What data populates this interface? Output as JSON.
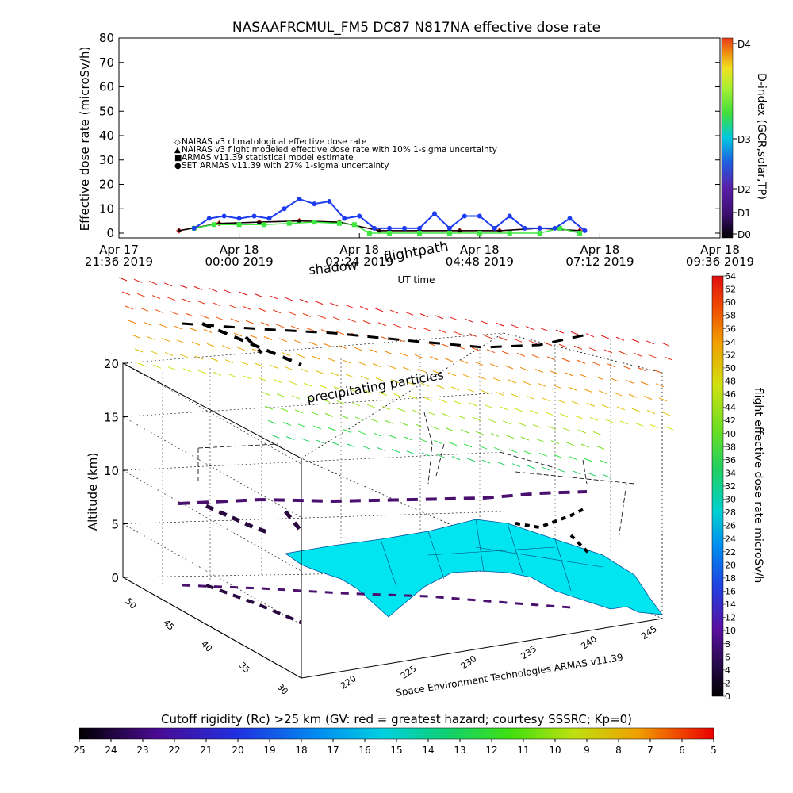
{
  "title": "NASAAFRCMUL_FM5 DC87 N817NA effective dose rate",
  "top_chart": {
    "ylabel": "Effective dose rate (microSv/h)",
    "xlabel": "UT time",
    "y_ticks": [
      "0",
      "10",
      "20",
      "30",
      "40",
      "50",
      "60",
      "70",
      "80"
    ],
    "x_ticks": [
      {
        "l1": "Apr 17",
        "l2": "21:36 2019"
      },
      {
        "l1": "Apr 18",
        "l2": "00:00 2019"
      },
      {
        "l1": "Apr 18",
        "l2": "02:24 2019"
      },
      {
        "l1": "Apr 18",
        "l2": "04:48 2019"
      },
      {
        "l1": "Apr 18",
        "l2": "07:12 2019"
      },
      {
        "l1": "Apr 18",
        "l2": "09:36 2019"
      }
    ],
    "legend": [
      {
        "marker": "◇",
        "color": "#e8261e",
        "text": "NAIRAS v3 climatological effective dose rate"
      },
      {
        "marker": "▲",
        "color": "#000000",
        "text": "NAIRAS v3 flight modeled effective dose rate with 10% 1-sigma uncertainty"
      },
      {
        "marker": "■",
        "color": "#3ee640",
        "text": "ARMAS v11.39 statistical model estimate"
      },
      {
        "marker": "●",
        "color": "#1d3cf0",
        "text": "SET ARMAS v11.39 with 27% 1-sigma uncertainty"
      }
    ],
    "dindex_label": "D-index (GCR,solar,TP)",
    "dindex_ticks": [
      "D4",
      "D3",
      "D2",
      "D1",
      "D0"
    ]
  },
  "chart_data": {
    "type": "scatter",
    "title": "NASAAFRCMUL_FM5 DC87 N817NA effective dose rate",
    "xlabel": "UT time",
    "ylabel": "Effective dose rate (microSv/h)",
    "ylim": [
      0,
      80
    ],
    "x_range_hours": [
      -2.4,
      9.6
    ],
    "series": [
      {
        "name": "NAIRAS v3 climatological effective dose rate",
        "x": [
          -1.2,
          -0.4,
          0.4,
          1.2,
          2.0,
          2.8,
          3.6,
          4.4,
          5.2,
          6.0,
          6.8
        ],
        "y": [
          1,
          4,
          4.5,
          5,
          4.5,
          1,
          1,
          1,
          1,
          2,
          1
        ]
      },
      {
        "name": "NAIRAS v3 flight modeled effective dose rate with 10% 1-sigma uncertainty",
        "x": [
          -1.2,
          -0.4,
          0.4,
          1.2,
          2.0,
          2.8,
          3.6,
          4.4,
          5.2,
          6.0,
          6.8
        ],
        "y": [
          1,
          4,
          4.5,
          5,
          4.5,
          1,
          1,
          1,
          1,
          2,
          1
        ]
      },
      {
        "name": "ARMAS v11.39 statistical model estimate",
        "x": [
          -0.9,
          -0.5,
          0,
          0.5,
          1.0,
          1.5,
          2.0,
          2.3,
          2.6,
          3.0,
          3.6,
          4.2,
          4.8,
          5.4,
          6.0,
          6.4,
          6.8
        ],
        "y": [
          2,
          3.5,
          3.5,
          3.5,
          4,
          4.5,
          4,
          3.5,
          0,
          0,
          0,
          0,
          0,
          0,
          0,
          2,
          0
        ]
      },
      {
        "name": "SET ARMAS v11.39 with 27% 1-sigma uncertainty",
        "x": [
          -0.9,
          -0.6,
          -0.3,
          0.0,
          0.3,
          0.6,
          0.9,
          1.2,
          1.5,
          1.8,
          2.1,
          2.4,
          2.7,
          3.0,
          3.3,
          3.6,
          3.9,
          4.2,
          4.5,
          4.8,
          5.1,
          5.4,
          5.7,
          6.0,
          6.3,
          6.6,
          6.9
        ],
        "y": [
          2,
          6,
          7,
          6,
          7,
          6,
          10,
          14,
          12,
          13,
          6,
          7,
          2,
          2,
          2,
          2,
          8,
          2,
          7,
          7,
          2,
          7,
          2,
          2,
          2,
          6,
          1
        ]
      }
    ],
    "colorbar_right_bottom": {
      "label": "flight effective dose rate microSv/h",
      "min": 0,
      "max": 64,
      "step": 2
    },
    "colorbar_bottom": {
      "label": "Cutoff rigidity (Rc) >25 km (GV: red = greatest hazard; courtesy SSSRC; Kp=0)",
      "ticks": [
        25,
        24,
        23,
        22,
        21,
        20,
        19,
        18,
        17,
        16,
        15,
        14,
        13,
        12,
        11,
        10,
        9,
        8,
        7,
        6,
        5
      ]
    },
    "altitude_axis": {
      "label": "Altitude (km)",
      "ticks": [
        0,
        5,
        10,
        15,
        20
      ]
    },
    "lat_ticks": [
      30,
      35,
      40,
      45,
      50
    ],
    "lon_ticks": [
      220,
      225,
      230,
      235,
      240,
      245
    ]
  },
  "scene": {
    "annotation_flightpath": "flightpath",
    "annotation_shadow": "shadow",
    "annotation_particles": "precipitating particles",
    "credit": "Space Environment Technologies ARMAS v11.39"
  },
  "colors": {
    "land": "#00e5f0",
    "ocean": "#ffffff",
    "dindex_scale": [
      "#000000",
      "#3b0f70",
      "#5a1fa8",
      "#1f5fe0",
      "#00b8e0",
      "#3ede3e",
      "#a8f030",
      "#f0e020",
      "#f08a10",
      "#e83a1a"
    ],
    "dose_scale": [
      "#000000",
      "#2a0a50",
      "#5a10a0",
      "#2040e0",
      "#0090f0",
      "#00d0d0",
      "#20d060",
      "#70e020",
      "#d0e010",
      "#f0a000",
      "#f05000",
      "#e01010"
    ]
  }
}
